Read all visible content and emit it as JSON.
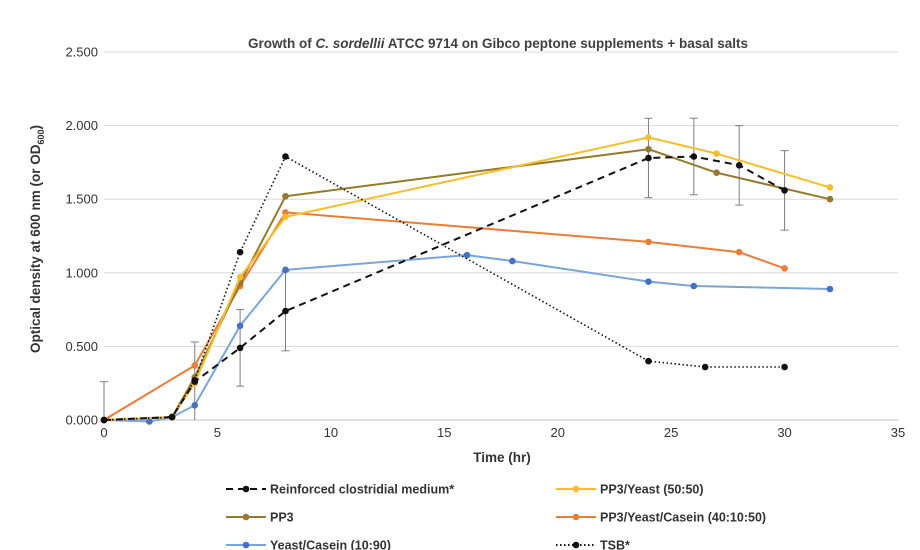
{
  "chart_data": {
    "type": "line",
    "title": {
      "prefix": "Growth of ",
      "italic": "C. sordellii",
      "suffix": " ATCC 9714 on Gibco peptone supplements + basal salts"
    },
    "xlabel": "Time (hr)",
    "ylabel": {
      "main": "Optical density at 600 nm (or OD",
      "sub": "600",
      "end": ")"
    },
    "xlim": [
      0,
      35
    ],
    "ylim": [
      0,
      2.5
    ],
    "xticks": [
      "0",
      "5",
      "10",
      "15",
      "20",
      "25",
      "30",
      "35"
    ],
    "yticks": [
      "0.000",
      "0.500",
      "1.000",
      "1.500",
      "2.000",
      "2.500"
    ],
    "grid": "horizontal",
    "legend_position": "bottom",
    "series": [
      {
        "name": "Reinforced clostridial medium*",
        "color": "#111111",
        "dash": "dashed",
        "x": [
          0,
          3,
          4,
          6,
          8,
          24,
          26,
          28,
          30
        ],
        "y": [
          0.0,
          0.02,
          0.26,
          0.49,
          0.74,
          1.78,
          1.79,
          1.73,
          1.56
        ],
        "error": [
          0.26,
          0.0,
          0.27,
          0.26,
          0.27,
          0.27,
          0.26,
          0.27,
          0.27
        ]
      },
      {
        "name": "PP3/Yeast (50:50)",
        "color": "#F5BE2E",
        "dash": "solid",
        "x": [
          0,
          3,
          4,
          6,
          8,
          24,
          27,
          32
        ],
        "y": [
          0.0,
          0.02,
          0.25,
          0.97,
          1.38,
          1.92,
          1.81,
          1.58
        ]
      },
      {
        "name": "PP3",
        "color": "#957A2C",
        "dash": "solid",
        "x": [
          0,
          3,
          4,
          6,
          8,
          24,
          27,
          32
        ],
        "y": [
          0.0,
          0.02,
          0.29,
          0.93,
          1.52,
          1.84,
          1.68,
          1.5
        ]
      },
      {
        "name": "PP3/Yeast/Casein (40:10:50)",
        "color": "#EB7D37",
        "dash": "solid",
        "x": [
          0,
          4,
          6,
          8,
          24,
          28,
          30
        ],
        "y": [
          0.0,
          0.37,
          0.91,
          1.41,
          1.21,
          1.14,
          1.03
        ]
      },
      {
        "name": "Yeast/Casein (10:90)",
        "color": "#7AA5DA",
        "dash": "solid",
        "x": [
          0,
          2,
          3,
          4,
          6,
          8,
          16,
          18,
          24,
          26,
          32
        ],
        "y": [
          0.0,
          -0.01,
          0.02,
          0.1,
          0.64,
          1.02,
          1.12,
          1.08,
          0.94,
          0.91,
          0.89
        ]
      },
      {
        "name": "TSB*",
        "color": "#111111",
        "dash": "dotted",
        "x": [
          0,
          3,
          4,
          6,
          8,
          24,
          26.5,
          30
        ],
        "y": [
          0.0,
          0.02,
          0.27,
          1.14,
          1.79,
          0.4,
          0.36,
          0.36
        ]
      }
    ]
  },
  "colors": {
    "marker_blue": "#4472C4",
    "grid": "#d9d9d9",
    "axis": "#bfbfbf",
    "error_bar": "#7f7f7f"
  }
}
